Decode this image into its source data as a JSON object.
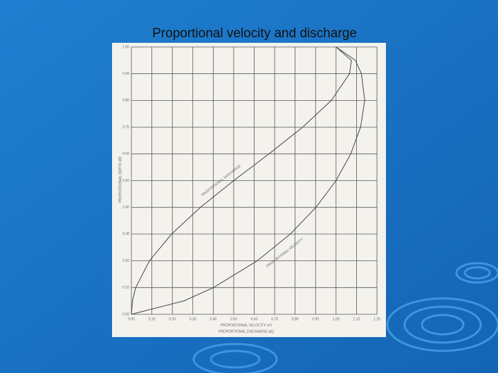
{
  "chart_data": {
    "type": "line",
    "orientation": "horizontal",
    "title": "Proportional velocity and discharge",
    "y_label": "PROPORTIONAL DEPTH d/D",
    "x_labels": [
      "PROPORTIONAL VELOCITY v/V",
      "PROPORTIONAL DISCHARGE q/Q"
    ],
    "y": [
      0,
      0.05,
      0.1,
      0.2,
      0.3,
      0.4,
      0.5,
      0.6,
      0.7,
      0.8,
      0.9,
      0.95,
      1.0
    ],
    "series": [
      {
        "name": "PROPORTIONAL DISCHARGE",
        "color": "#444444",
        "values": [
          0,
          0.005,
          0.021,
          0.088,
          0.196,
          0.337,
          0.5,
          0.672,
          0.837,
          0.977,
          1.066,
          1.075,
          1.0
        ]
      },
      {
        "name": "PROPORTIONAL VELOCITY",
        "color": "#444444",
        "values": [
          0,
          0.257,
          0.401,
          0.615,
          0.776,
          0.902,
          1.0,
          1.072,
          1.12,
          1.14,
          1.124,
          1.095,
          1.0
        ]
      }
    ],
    "xlim": [
      0,
      1.2
    ],
    "ylim": [
      0,
      1.0
    ],
    "xticks": [
      {
        "value": 0,
        "label": "0.00"
      },
      {
        "value": 0.1,
        "label": "0.10"
      },
      {
        "value": 0.2,
        "label": "0.20"
      },
      {
        "value": 0.3,
        "label": "0.30"
      },
      {
        "value": 0.4,
        "label": "0.40"
      },
      {
        "value": 0.5,
        "label": "0.50"
      },
      {
        "value": 0.6,
        "label": "0.60"
      },
      {
        "value": 0.7,
        "label": "0.70"
      },
      {
        "value": 0.8,
        "label": "0.80"
      },
      {
        "value": 0.9,
        "label": "0.90"
      },
      {
        "value": 1.0,
        "label": "1.00"
      },
      {
        "value": 1.1,
        "label": "1.10"
      },
      {
        "value": 1.2,
        "label": "1.20"
      }
    ],
    "yticks": [
      {
        "value": 0,
        "label": "0.00"
      },
      {
        "value": 0.1,
        "label": "0.10"
      },
      {
        "value": 0.2,
        "label": "0.20"
      },
      {
        "value": 0.3,
        "label": "0.30"
      },
      {
        "value": 0.4,
        "label": "0.40"
      },
      {
        "value": 0.5,
        "label": "0.50"
      },
      {
        "value": 0.6,
        "label": "0.60"
      },
      {
        "value": 0.7,
        "label": "0.70"
      },
      {
        "value": 0.8,
        "label": "0.80"
      },
      {
        "value": 0.9,
        "label": "0.90"
      },
      {
        "value": 1.0,
        "label": "1.00"
      }
    ],
    "grid": true
  }
}
